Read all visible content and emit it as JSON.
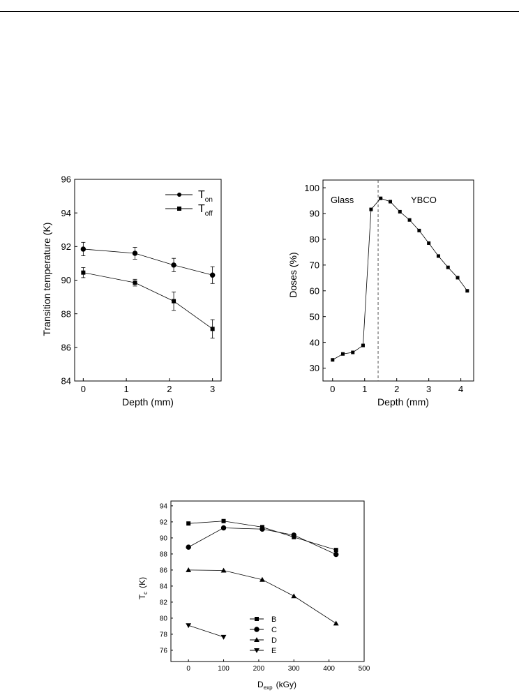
{
  "chart_data": [
    {
      "type": "line",
      "xlabel": "Depth (mm)",
      "ylabel": "Transition temperature (K)",
      "xlim": [
        -0.2,
        3.2
      ],
      "ylim": [
        84,
        96
      ],
      "xticks": [
        "0",
        "1",
        "2",
        "3"
      ],
      "yticks": [
        "84",
        "86",
        "88",
        "90",
        "92",
        "94",
        "96"
      ],
      "legend_placement": "top-right",
      "error_bars": true,
      "series": [
        {
          "name_main": "T",
          "name_sub": "on",
          "marker": "circle",
          "points": [
            [
              0,
              91.85
            ],
            [
              1.2,
              91.6
            ],
            [
              2.1,
              90.9
            ],
            [
              3.0,
              90.3
            ]
          ],
          "errors": [
            0.4,
            0.35,
            0.4,
            0.5
          ]
        },
        {
          "name_main": "T",
          "name_sub": "off",
          "marker": "square",
          "points": [
            [
              0,
              90.45
            ],
            [
              1.2,
              89.85
            ],
            [
              2.1,
              88.75
            ],
            [
              3.0,
              87.1
            ]
          ],
          "errors": [
            0.3,
            0.2,
            0.55,
            0.55
          ]
        }
      ]
    },
    {
      "type": "line",
      "xlabel": "Depth (mm)",
      "ylabel": "Doses (%)",
      "xlim": [
        -0.3,
        4.4
      ],
      "ylim": [
        25,
        103
      ],
      "xticks": [
        "0",
        "1",
        "2",
        "3",
        "4"
      ],
      "yticks": [
        "30",
        "40",
        "50",
        "60",
        "70",
        "80",
        "90",
        "100"
      ],
      "divider_x": 1.42,
      "annotations": [
        "Glass",
        "YBCO"
      ],
      "series": [
        {
          "marker": "square",
          "points": [
            [
              0,
              33.2
            ],
            [
              0.32,
              35.5
            ],
            [
              0.63,
              36.1
            ],
            [
              0.95,
              38.8
            ],
            [
              1.2,
              91.6
            ],
            [
              1.5,
              95.9
            ],
            [
              1.8,
              94.6
            ],
            [
              2.1,
              90.7
            ],
            [
              2.4,
              87.5
            ],
            [
              2.7,
              83.4
            ],
            [
              3.0,
              78.5
            ],
            [
              3.3,
              73.5
            ],
            [
              3.6,
              69.1
            ],
            [
              3.9,
              65.1
            ],
            [
              4.2,
              60.0
            ]
          ]
        }
      ]
    },
    {
      "type": "line",
      "xlabel_main": "D",
      "xlabel_sub": "exp",
      "xlabel_unit": "(kGy)",
      "ylabel_main": "T",
      "ylabel_sub": "c",
      "ylabel_unit": "(K)",
      "xlim": [
        -50,
        500
      ],
      "ylim": [
        74.6,
        94.6
      ],
      "xticks": [
        "0",
        "100",
        "200",
        "300",
        "400",
        "500"
      ],
      "yticks": [
        "76",
        "78",
        "80",
        "82",
        "84",
        "86",
        "88",
        "90",
        "92",
        "94"
      ],
      "legend_placement": "bottom-left",
      "series": [
        {
          "name": "B",
          "marker": "square",
          "points": [
            [
              0,
              91.8
            ],
            [
              100,
              92.1
            ],
            [
              210,
              91.35
            ],
            [
              300,
              90.1
            ],
            [
              420,
              88.5
            ]
          ]
        },
        {
          "name": "C",
          "marker": "circle",
          "points": [
            [
              0,
              88.85
            ],
            [
              100,
              91.25
            ],
            [
              210,
              91.1
            ],
            [
              300,
              90.35
            ],
            [
              420,
              87.95
            ]
          ]
        },
        {
          "name": "D",
          "marker": "triangle-up",
          "points": [
            [
              0,
              86.0
            ],
            [
              100,
              85.95
            ],
            [
              210,
              84.8
            ],
            [
              300,
              82.75
            ],
            [
              420,
              79.35
            ]
          ]
        },
        {
          "name": "E",
          "marker": "triangle-down",
          "points": [
            [
              0,
              79.1
            ],
            [
              100,
              77.65
            ]
          ]
        }
      ]
    }
  ]
}
